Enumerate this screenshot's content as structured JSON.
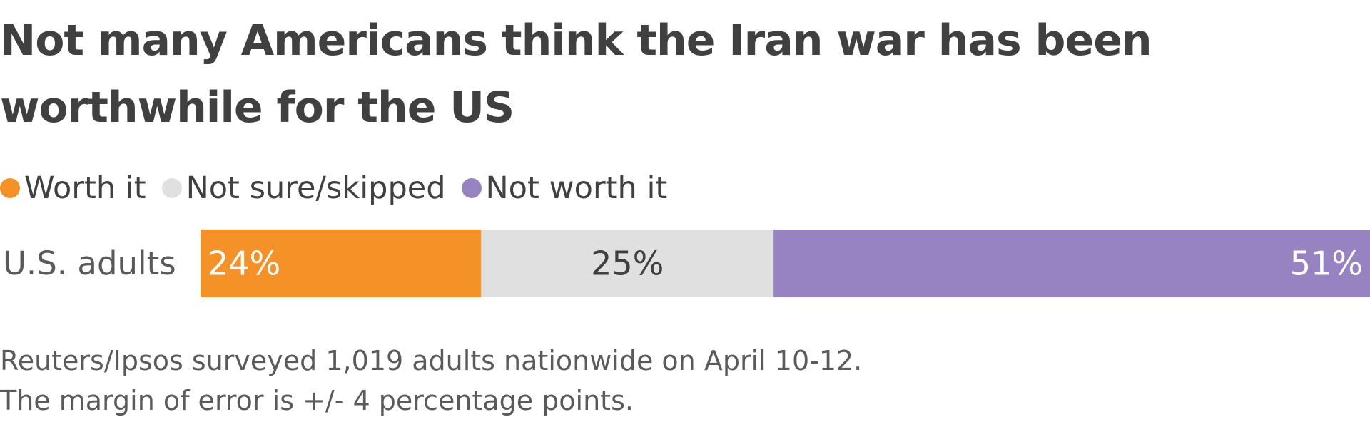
{
  "chart_data": {
    "type": "bar",
    "orientation": "horizontal",
    "stacked": true,
    "normalized": true,
    "title": "Not many Americans think the Iran war has been worthwhile for the US",
    "categories": [
      "U.S. adults"
    ],
    "series": [
      {
        "name": "Worth it",
        "values": [
          24
        ],
        "label": "24%",
        "color": "#f59227",
        "label_color": "#ffffff"
      },
      {
        "name": "Not sure/skipped",
        "values": [
          25
        ],
        "label": "25%",
        "color": "#e0e0e0",
        "label_color": "#404040"
      },
      {
        "name": "Not worth it",
        "values": [
          51
        ],
        "label": "51%",
        "color": "#9783c1",
        "label_color": "#ffffff"
      }
    ],
    "xlim": [
      0,
      100
    ],
    "grid": false,
    "legend_position": "top-left",
    "notes": [
      "Reuters/Ipsos surveyed 1,019 adults nationwide on April 10-12.",
      "The margin of error is +/- 4 percentage points."
    ]
  }
}
